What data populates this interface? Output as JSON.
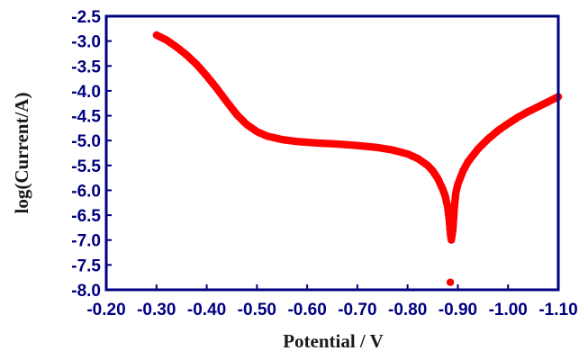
{
  "chart_data": {
    "type": "scatter",
    "title": "",
    "xlabel": "Potential / V",
    "ylabel": "log(Current/A)",
    "x_axis_reversed": true,
    "xlim": [
      -0.2,
      -1.1
    ],
    "ylim": [
      -8.0,
      -2.5
    ],
    "x_ticks": [
      -0.2,
      -0.3,
      -0.4,
      -0.5,
      -0.6,
      -0.7,
      -0.8,
      -0.9,
      -1.0,
      -1.1
    ],
    "x_tick_labels": [
      "-0.20",
      "-0.30",
      "-0.40",
      "-0.50",
      "-0.60",
      "-0.70",
      "-0.80",
      "-0.90",
      "-1.00",
      "-1.10"
    ],
    "y_ticks": [
      -2.5,
      -3.0,
      -3.5,
      -4.0,
      -4.5,
      -5.0,
      -5.5,
      -6.0,
      -6.5,
      -7.0,
      -7.5,
      -8.0
    ],
    "y_tick_labels": [
      "-2.5",
      "-3.0",
      "-3.5",
      "-4.0",
      "-4.5",
      "-5.0",
      "-5.5",
      "-6.0",
      "-6.5",
      "-7.0",
      "-7.5",
      "-8.0"
    ],
    "grid": false,
    "legend": "none",
    "colors": {
      "marker": "#ff0000",
      "axes": "#000080",
      "tick_text": "#000080",
      "title_text": "#1a1a1a"
    },
    "series": [
      {
        "marker_color": "#ff0000",
        "x": [
          -0.3,
          -0.32,
          -0.34,
          -0.36,
          -0.38,
          -0.4,
          -0.42,
          -0.44,
          -0.46,
          -0.48,
          -0.5,
          -0.52,
          -0.55,
          -0.58,
          -0.62,
          -0.66,
          -0.7,
          -0.74,
          -0.77,
          -0.8,
          -0.82,
          -0.84,
          -0.85,
          -0.86,
          -0.87,
          -0.875,
          -0.88,
          -0.883,
          -0.885,
          -0.887,
          -0.89,
          -0.893,
          -0.896,
          -0.9,
          -0.91,
          -0.92,
          -0.94,
          -0.96,
          -0.98,
          -1.0,
          -1.02,
          -1.04,
          -1.06,
          -1.08,
          -1.1
        ],
        "y": [
          -2.88,
          -2.98,
          -3.12,
          -3.28,
          -3.47,
          -3.7,
          -3.95,
          -4.22,
          -4.48,
          -4.68,
          -4.82,
          -4.91,
          -4.98,
          -5.02,
          -5.05,
          -5.07,
          -5.1,
          -5.14,
          -5.19,
          -5.27,
          -5.36,
          -5.5,
          -5.61,
          -5.76,
          -5.98,
          -6.12,
          -6.35,
          -6.6,
          -6.85,
          -7.0,
          -6.8,
          -6.35,
          -6.05,
          -5.88,
          -5.62,
          -5.43,
          -5.17,
          -4.97,
          -4.8,
          -4.66,
          -4.53,
          -4.42,
          -4.32,
          -4.22,
          -4.12
        ]
      },
      {
        "marker_color": "#ff0000",
        "x": [
          -0.885
        ],
        "y": [
          -7.85
        ]
      }
    ]
  }
}
